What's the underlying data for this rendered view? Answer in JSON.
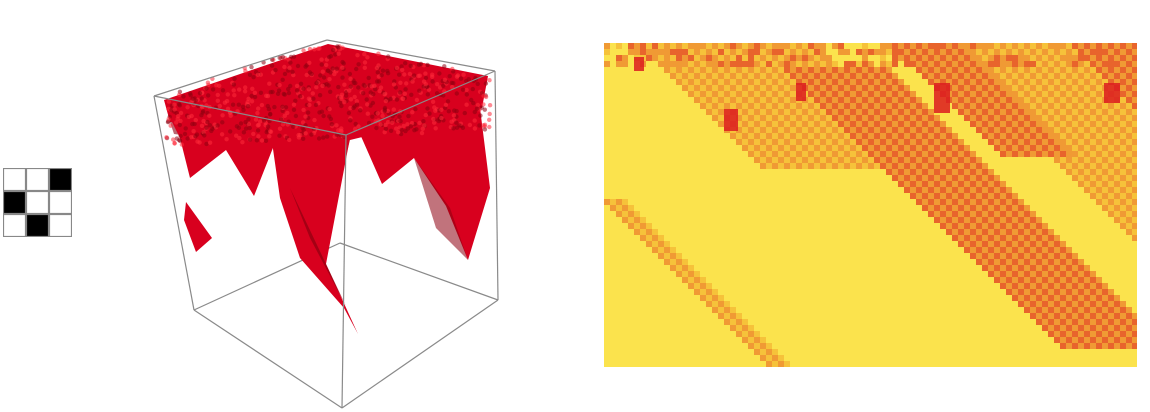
{
  "rule_pattern": {
    "rows": [
      [
        0,
        0,
        1
      ],
      [
        1,
        0,
        0
      ],
      [
        0,
        1,
        0
      ]
    ],
    "cell_colors": {
      "on": "#000000",
      "off": "#ffffff",
      "border": "#888888"
    }
  },
  "cube_plot": {
    "frame_color": "#8a8a8a",
    "voxel_color": "#d8001e",
    "voxel_shade": "#8e0010"
  },
  "density_plot": {
    "palette": [
      "#fbe34d",
      "#f6c23a",
      "#f09a34",
      "#e8642c",
      "#dc1c20"
    ]
  }
}
